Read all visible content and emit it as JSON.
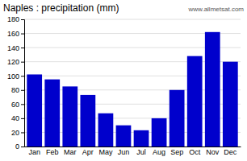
{
  "chart_data": {
    "type": "bar",
    "title": "Naples : precipitation (mm)",
    "categories": [
      "Jan",
      "Feb",
      "Mar",
      "Apr",
      "May",
      "Jun",
      "Jul",
      "Aug",
      "Sep",
      "Oct",
      "Nov",
      "Dec"
    ],
    "values": [
      102,
      95,
      85,
      73,
      47,
      30,
      23,
      40,
      80,
      128,
      162,
      120
    ],
    "color": "#0000cc",
    "ylim": [
      0,
      180
    ],
    "yticks": [
      0,
      20,
      40,
      60,
      80,
      100,
      120,
      140,
      160,
      180
    ],
    "grid": true,
    "annotation": "www.allmetsat.com"
  }
}
